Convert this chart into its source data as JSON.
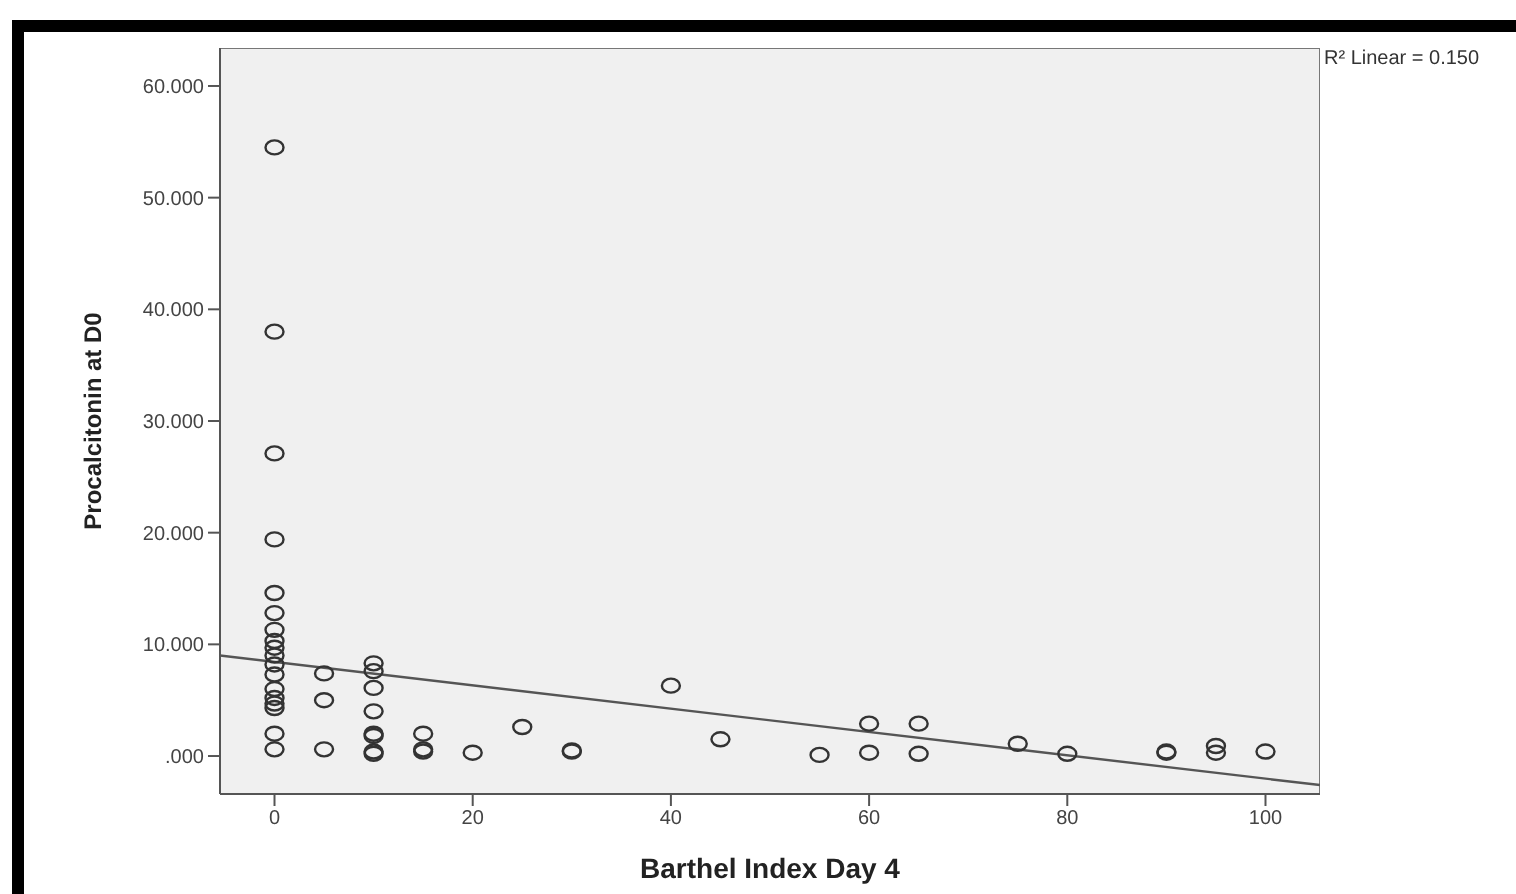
{
  "chart_data": {
    "type": "scatter",
    "xlabel": "Barthel Index Day 4",
    "ylabel": "Procalcitonin at D0",
    "annotations": [
      "R² Linear = 0.150"
    ],
    "xlim": [
      -5.5,
      105.5
    ],
    "ylim": [
      -3.4,
      63.4
    ],
    "xticks": [
      0,
      20,
      40,
      60,
      80,
      100
    ],
    "yticks": [
      {
        "value": 0,
        "label": ".000"
      },
      {
        "value": 10,
        "label": "10.000"
      },
      {
        "value": 20,
        "label": "20.000"
      },
      {
        "value": 30,
        "label": "30.000"
      },
      {
        "value": 40,
        "label": "40.000"
      },
      {
        "value": 50,
        "label": "50.000"
      },
      {
        "value": 60,
        "label": "60.000"
      }
    ],
    "grid": false,
    "series": [
      {
        "marker": "circle",
        "color": "#333333",
        "x": [
          0,
          0,
          0,
          0,
          0,
          0,
          0,
          0,
          0,
          0,
          0,
          0,
          0,
          0,
          0,
          0,
          0,
          0,
          5,
          5,
          5,
          10,
          10,
          10,
          10,
          10,
          10,
          10,
          10,
          15,
          15,
          15,
          20,
          25,
          30,
          30,
          40,
          45,
          55,
          60,
          60,
          65,
          65,
          75,
          80,
          90,
          90,
          95,
          95,
          100
        ],
        "values": [
          54.5,
          38.0,
          27.1,
          19.4,
          14.6,
          12.8,
          11.3,
          10.3,
          9.7,
          9.0,
          8.2,
          7.3,
          6.0,
          5.2,
          4.7,
          4.3,
          2.0,
          0.6,
          7.4,
          5.0,
          0.6,
          8.3,
          7.6,
          6.1,
          4.0,
          2.0,
          1.8,
          0.4,
          0.2,
          2.0,
          0.6,
          0.4,
          0.3,
          2.6,
          0.5,
          0.4,
          6.3,
          1.5,
          0.1,
          2.9,
          0.3,
          2.9,
          0.2,
          1.1,
          0.2,
          0.3,
          0.4,
          0.3,
          0.9,
          0.4
        ]
      },
      {
        "type": "line",
        "color": "#555555",
        "x": [
          -5.5,
          105.5
        ],
        "values": [
          9.0,
          -2.6
        ]
      }
    ]
  }
}
